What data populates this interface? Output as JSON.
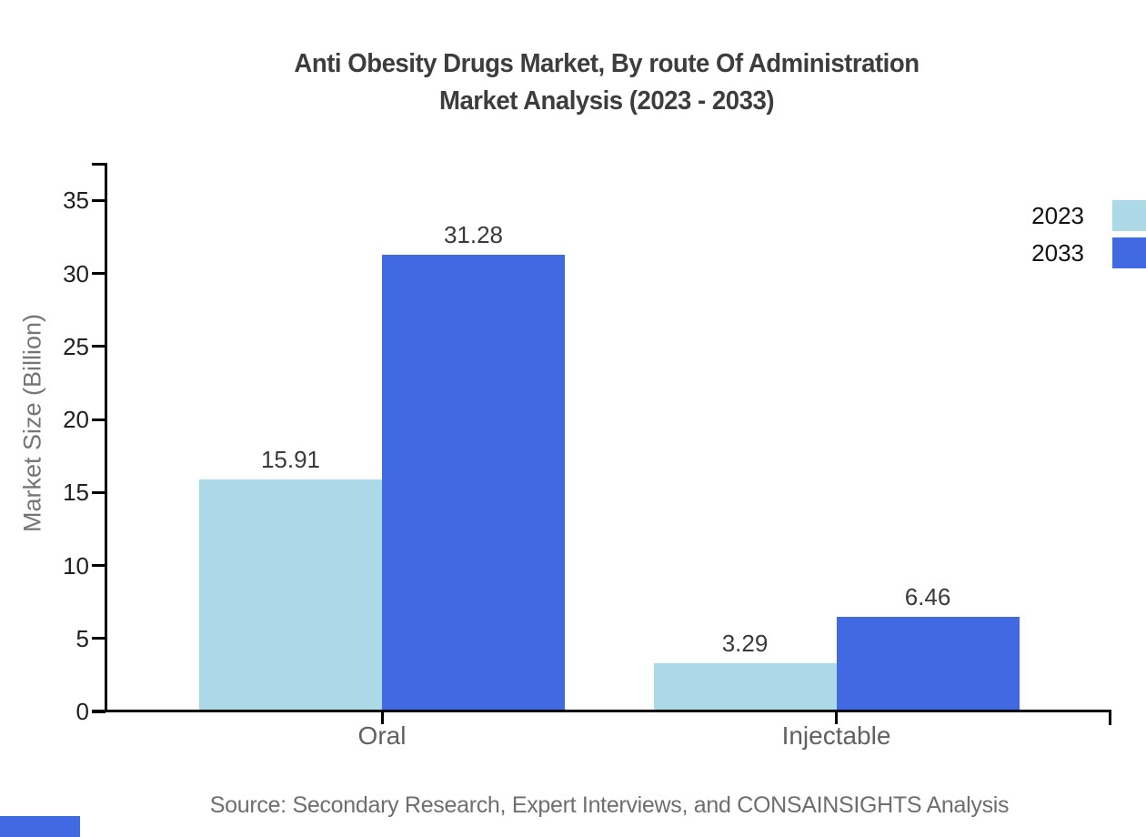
{
  "title": {
    "line1": "Anti Obesity Drugs Market, By route Of Administration",
    "line2": "Market Analysis (2023 - 2033)"
  },
  "source": "Source: Secondary Research, Expert Interviews, and CONSAINSIGHTS Analysis",
  "colors": {
    "series_2023": "#ADD8E6",
    "series_2033": "#4169E1",
    "axis": "#000000",
    "brand_mark": "#4169E1",
    "title_text": "#3d3d3d",
    "tick_text": "#1f1f1f"
  },
  "chart_data": {
    "type": "bar",
    "title": "Anti Obesity Drugs Market, By route Of Administration Market Analysis (2023 - 2033)",
    "categories": [
      "Oral",
      "Injectable"
    ],
    "series": [
      {
        "name": "2023",
        "color": "#ADD8E6",
        "values": [
          15.91,
          3.29
        ]
      },
      {
        "name": "2033",
        "color": "#4169E1",
        "values": [
          31.28,
          6.46
        ]
      }
    ],
    "value_labels": [
      "15.91",
      "31.28",
      "3.29",
      "6.46"
    ],
    "ylabel": "Market Size (Billion)",
    "xlabel": "",
    "yticks": [
      0,
      5,
      10,
      15,
      20,
      25,
      30,
      35
    ],
    "ylim": [
      0,
      37.5
    ],
    "grid": false,
    "legend_position": "top-right"
  }
}
